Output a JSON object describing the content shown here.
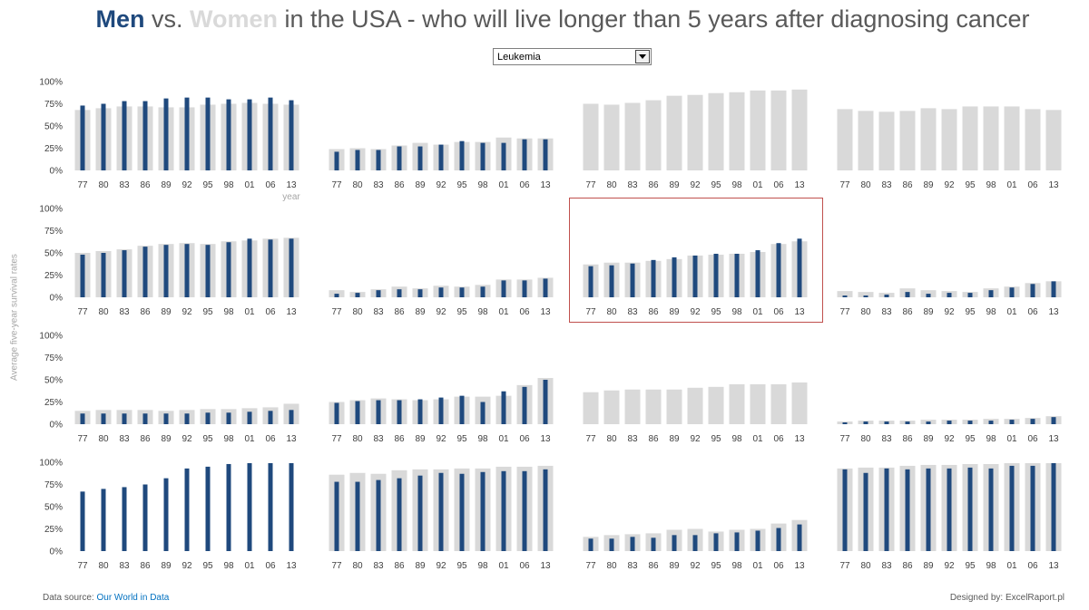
{
  "title": {
    "men": "Men",
    "vs": " vs. ",
    "women": "Women",
    "rest": " in the USA - who will live longer than 5 years after diagnosing cancer"
  },
  "dropdown": {
    "selected": "Leukemia"
  },
  "y_axis_label": "Average five-year survival rates",
  "x_axis_label": "year",
  "footer": {
    "source_prefix": "Data source: ",
    "source_link": "Our World in Data",
    "credit": "Designed by: ExcelRaport.pl"
  },
  "colors": {
    "men": "#1f497d",
    "women": "#d9d9d9",
    "highlight": "#c0504d"
  },
  "chart_data": [
    {
      "type": "bar",
      "categories": [
        "77",
        "80",
        "83",
        "86",
        "89",
        "92",
        "95",
        "98",
        "01",
        "06",
        "13"
      ],
      "ylim": [
        0,
        100
      ],
      "yticks": [
        "0%",
        "25%",
        "50%",
        "75%",
        "100%"
      ],
      "series": [
        {
          "name": "Women",
          "values": [
            68,
            70,
            72,
            72,
            71,
            71,
            74,
            75,
            76,
            75,
            74
          ]
        },
        {
          "name": "Men",
          "values": [
            73,
            75,
            78,
            78,
            81,
            82,
            82,
            80,
            80,
            82,
            79
          ]
        }
      ]
    },
    {
      "type": "bar",
      "categories": [
        "77",
        "80",
        "83",
        "86",
        "89",
        "92",
        "95",
        "98",
        "01",
        "06",
        "13"
      ],
      "ylim": [
        0,
        100
      ],
      "series": [
        {
          "name": "Women",
          "values": [
            24,
            25,
            24,
            28,
            31,
            29,
            32,
            32,
            37,
            36,
            36
          ]
        },
        {
          "name": "Men",
          "values": [
            21,
            23,
            23,
            27,
            27,
            29,
            33,
            31,
            31,
            35,
            35
          ]
        }
      ]
    },
    {
      "type": "bar",
      "categories": [
        "77",
        "80",
        "83",
        "86",
        "89",
        "92",
        "95",
        "98",
        "01",
        "06",
        "13"
      ],
      "ylim": [
        0,
        100
      ],
      "series": [
        {
          "name": "Women",
          "values": [
            75,
            74,
            76,
            79,
            84,
            85,
            87,
            88,
            90,
            90,
            91
          ]
        },
        {
          "name": "Men",
          "values": [
            0,
            0,
            0,
            0,
            0,
            0,
            0,
            0,
            0,
            0,
            0
          ]
        }
      ]
    },
    {
      "type": "bar",
      "categories": [
        "77",
        "80",
        "83",
        "86",
        "89",
        "92",
        "95",
        "98",
        "01",
        "06",
        "13"
      ],
      "ylim": [
        0,
        100
      ],
      "series": [
        {
          "name": "Women",
          "values": [
            69,
            67,
            66,
            67,
            70,
            69,
            72,
            72,
            72,
            69,
            68
          ]
        },
        {
          "name": "Men",
          "values": [
            0,
            0,
            0,
            0,
            0,
            0,
            0,
            0,
            0,
            0,
            0
          ]
        }
      ]
    },
    {
      "type": "bar",
      "categories": [
        "77",
        "80",
        "83",
        "86",
        "89",
        "92",
        "95",
        "98",
        "01",
        "06",
        "13"
      ],
      "ylim": [
        0,
        100
      ],
      "yticks": [
        "0%",
        "25%",
        "50%",
        "75%",
        "100%"
      ],
      "series": [
        {
          "name": "Women",
          "values": [
            50,
            52,
            54,
            58,
            60,
            61,
            60,
            63,
            64,
            66,
            67
          ]
        },
        {
          "name": "Men",
          "values": [
            48,
            50,
            53,
            57,
            59,
            60,
            59,
            62,
            66,
            65,
            66
          ]
        }
      ]
    },
    {
      "type": "bar",
      "categories": [
        "77",
        "80",
        "83",
        "86",
        "89",
        "92",
        "95",
        "98",
        "01",
        "06",
        "13"
      ],
      "ylim": [
        0,
        100
      ],
      "series": [
        {
          "name": "Women",
          "values": [
            8,
            6,
            9,
            12,
            10,
            13,
            12,
            14,
            20,
            20,
            22
          ]
        },
        {
          "name": "Men",
          "values": [
            4,
            5,
            8,
            9,
            9,
            11,
            11,
            12,
            19,
            19,
            21
          ]
        }
      ]
    },
    {
      "type": "bar",
      "categories": [
        "77",
        "80",
        "83",
        "86",
        "89",
        "92",
        "95",
        "98",
        "01",
        "06",
        "13"
      ],
      "ylim": [
        0,
        100
      ],
      "series": [
        {
          "name": "Women",
          "values": [
            37,
            39,
            39,
            41,
            43,
            47,
            48,
            49,
            51,
            60,
            63
          ]
        },
        {
          "name": "Men",
          "values": [
            35,
            36,
            38,
            42,
            45,
            47,
            49,
            49,
            53,
            61,
            66
          ]
        }
      ]
    },
    {
      "type": "bar",
      "categories": [
        "77",
        "80",
        "83",
        "86",
        "89",
        "92",
        "95",
        "98",
        "01",
        "06",
        "13"
      ],
      "ylim": [
        0,
        100
      ],
      "series": [
        {
          "name": "Women",
          "values": [
            7,
            6,
            5,
            10,
            8,
            7,
            6,
            10,
            12,
            16,
            18
          ]
        },
        {
          "name": "Men",
          "values": [
            2,
            2,
            3,
            6,
            4,
            5,
            5,
            8,
            11,
            15,
            18
          ]
        }
      ]
    },
    {
      "type": "bar",
      "categories": [
        "77",
        "80",
        "83",
        "86",
        "89",
        "92",
        "95",
        "98",
        "01",
        "06",
        "13"
      ],
      "ylim": [
        0,
        100
      ],
      "yticks": [
        "0%",
        "25%",
        "50%",
        "75%",
        "100%"
      ],
      "series": [
        {
          "name": "Women",
          "values": [
            15,
            16,
            16,
            16,
            15,
            16,
            17,
            17,
            18,
            19,
            23
          ]
        },
        {
          "name": "Men",
          "values": [
            12,
            12,
            12,
            12,
            12,
            12,
            13,
            13,
            14,
            15,
            16
          ]
        }
      ]
    },
    {
      "type": "bar",
      "categories": [
        "77",
        "80",
        "83",
        "86",
        "89",
        "92",
        "95",
        "98",
        "01",
        "06",
        "13"
      ],
      "ylim": [
        0,
        100
      ],
      "series": [
        {
          "name": "Women",
          "values": [
            25,
            27,
            29,
            28,
            27,
            28,
            31,
            31,
            32,
            44,
            52
          ]
        },
        {
          "name": "Men",
          "values": [
            24,
            26,
            27,
            27,
            28,
            30,
            32,
            25,
            37,
            42,
            50
          ]
        }
      ]
    },
    {
      "type": "bar",
      "categories": [
        "77",
        "80",
        "83",
        "86",
        "89",
        "92",
        "95",
        "98",
        "01",
        "06",
        "13"
      ],
      "ylim": [
        0,
        100
      ],
      "series": [
        {
          "name": "Women",
          "values": [
            36,
            38,
            39,
            39,
            39,
            41,
            42,
            45,
            45,
            45,
            47
          ]
        },
        {
          "name": "Men",
          "values": [
            0,
            0,
            0,
            0,
            0,
            0,
            0,
            0,
            0,
            0,
            0
          ]
        }
      ]
    },
    {
      "type": "bar",
      "categories": [
        "77",
        "80",
        "83",
        "86",
        "89",
        "92",
        "95",
        "98",
        "01",
        "06",
        "13"
      ],
      "ylim": [
        0,
        100
      ],
      "series": [
        {
          "name": "Women",
          "values": [
            3,
            4,
            4,
            4,
            5,
            5,
            5,
            6,
            6,
            7,
            9
          ]
        },
        {
          "name": "Men",
          "values": [
            2,
            3,
            3,
            3,
            3,
            4,
            4,
            4,
            5,
            6,
            8
          ]
        }
      ]
    },
    {
      "type": "bar",
      "categories": [
        "77",
        "80",
        "83",
        "86",
        "89",
        "92",
        "95",
        "98",
        "01",
        "06",
        "13"
      ],
      "ylim": [
        0,
        100
      ],
      "yticks": [
        "0%",
        "25%",
        "50%",
        "75%",
        "100%"
      ],
      "series": [
        {
          "name": "Women",
          "values": [
            0,
            0,
            0,
            0,
            0,
            0,
            0,
            0,
            0,
            0,
            0
          ]
        },
        {
          "name": "Men",
          "values": [
            67,
            70,
            72,
            75,
            82,
            93,
            95,
            98,
            99,
            99,
            99
          ]
        }
      ]
    },
    {
      "type": "bar",
      "categories": [
        "77",
        "80",
        "83",
        "86",
        "89",
        "92",
        "95",
        "98",
        "01",
        "06",
        "13"
      ],
      "ylim": [
        0,
        100
      ],
      "series": [
        {
          "name": "Women",
          "values": [
            86,
            88,
            87,
            91,
            92,
            92,
            93,
            93,
            95,
            95,
            96
          ]
        },
        {
          "name": "Men",
          "values": [
            78,
            78,
            80,
            82,
            85,
            88,
            87,
            89,
            90,
            90,
            92
          ]
        }
      ]
    },
    {
      "type": "bar",
      "categories": [
        "77",
        "80",
        "83",
        "86",
        "89",
        "92",
        "95",
        "98",
        "01",
        "06",
        "13"
      ],
      "ylim": [
        0,
        100
      ],
      "series": [
        {
          "name": "Women",
          "values": [
            16,
            18,
            19,
            20,
            24,
            25,
            22,
            24,
            25,
            31,
            35
          ]
        },
        {
          "name": "Men",
          "values": [
            14,
            14,
            16,
            15,
            18,
            18,
            20,
            21,
            23,
            26,
            30
          ]
        }
      ]
    },
    {
      "type": "bar",
      "categories": [
        "77",
        "80",
        "83",
        "86",
        "89",
        "92",
        "95",
        "98",
        "01",
        "06",
        "13"
      ],
      "ylim": [
        0,
        100
      ],
      "series": [
        {
          "name": "Women",
          "values": [
            93,
            94,
            94,
            96,
            97,
            97,
            98,
            98,
            99,
            99,
            99
          ]
        },
        {
          "name": "Men",
          "values": [
            92,
            88,
            93,
            92,
            93,
            93,
            94,
            93,
            96,
            96,
            99
          ]
        }
      ]
    }
  ]
}
